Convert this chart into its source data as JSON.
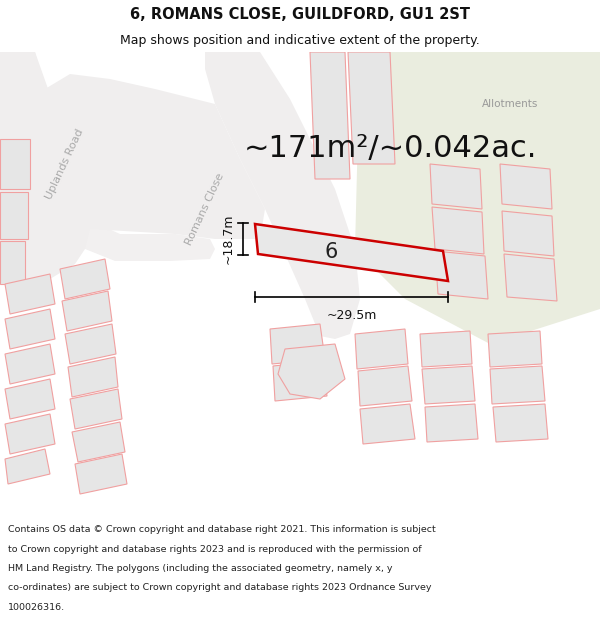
{
  "title": "6, ROMANS CLOSE, GUILDFORD, GU1 2ST",
  "subtitle": "Map shows position and indicative extent of the property.",
  "area_text": "~171m²/~0.042ac.",
  "width_label": "~29.5m",
  "height_label": "~18.7m",
  "number_label": "6",
  "allotments_label": "Allotments",
  "uplands_road_label": "Uplands Road",
  "romans_close_label": "Romans Close",
  "footer_lines": [
    "Contains OS data © Crown copyright and database right 2021. This information is subject",
    "to Crown copyright and database rights 2023 and is reproduced with the permission of",
    "HM Land Registry. The polygons (including the associated geometry, namely x, y",
    "co-ordinates) are subject to Crown copyright and database rights 2023 Ordnance Survey",
    "100026316."
  ],
  "bg_color": "#f8f8f8",
  "map_bg": "#f8f8f8",
  "green_area_color": "#eaeddf",
  "building_fill": "#e6e6e6",
  "building_edge": "#f0a0a0",
  "road_fill": "#f0eeee",
  "plot_outline_color": "#cc0000",
  "plot_fill_color": "#e8e8e8",
  "road_edge": "#d8d0d0",
  "title_fontsize": 10.5,
  "subtitle_fontsize": 9,
  "area_fontsize": 22,
  "footer_fontsize": 6.8
}
